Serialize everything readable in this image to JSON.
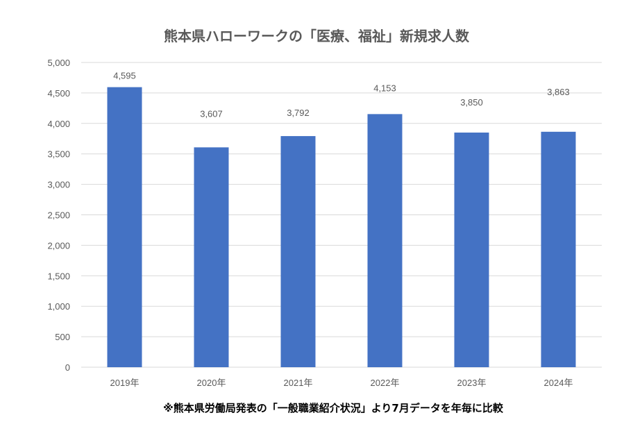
{
  "chart_data": {
    "type": "bar",
    "title": "熊本県ハローワークの「医療、福祉」新規求人数",
    "categories": [
      "2019年",
      "2020年",
      "2021年",
      "2022年",
      "2023年",
      "2024年"
    ],
    "values": [
      4595,
      3607,
      3792,
      4153,
      3850,
      3863
    ],
    "data_labels": [
      "4,595",
      "3,607",
      "3,792",
      "4,153",
      "3,850",
      "3,863"
    ],
    "ylim": [
      0,
      5000
    ],
    "yticks": [
      0,
      500,
      1000,
      1500,
      2000,
      2500,
      3000,
      3500,
      4000,
      4500,
      5000
    ],
    "ytick_labels": [
      "0",
      "500",
      "1,000",
      "1,500",
      "2,000",
      "2,500",
      "3,000",
      "3,500",
      "4,000",
      "4,500",
      "5,000"
    ],
    "grid": true,
    "xlabel": "",
    "ylabel": "",
    "bar_color": "#4472C4",
    "note": "※熊本県労働局発表の「一般職業紹介状況」より7月データを年毎に比較"
  }
}
